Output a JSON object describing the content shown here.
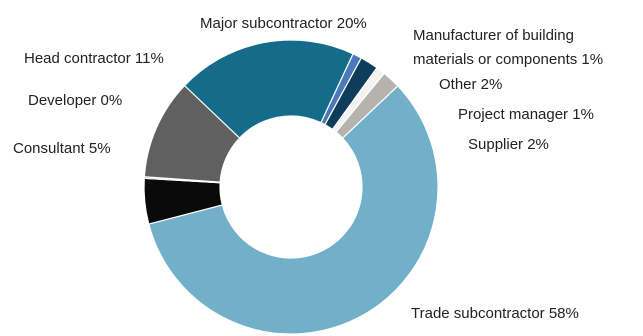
{
  "chart_data": {
    "type": "pie",
    "donut": true,
    "title": "",
    "legend": "none",
    "slices": [
      {
        "name": "Major subcontractor",
        "value": 20,
        "label": "Major subcontractor 20%",
        "color": "#156b8a"
      },
      {
        "name": "Manufacturer of building materials or components",
        "value": 1,
        "label_lines": [
          "Manufacturer of building",
          "materials or components 1%"
        ],
        "color": "#4a78b8"
      },
      {
        "name": "Other",
        "value": 2,
        "label": "Other 2%",
        "color": "#0e3d5c"
      },
      {
        "name": "Project manager",
        "value": 1,
        "label": "Project manager 1%",
        "color": "#f2f2f2"
      },
      {
        "name": "Supplier",
        "value": 2,
        "label": "Supplier 2%",
        "color": "#b5b3ae"
      },
      {
        "name": "Trade subcontractor",
        "value": 58,
        "label": "Trade subcontractor 58%",
        "color": "#72afc9"
      },
      {
        "name": "Consultant",
        "value": 5,
        "label": "Consultant 5%",
        "color": "#0a0a0a"
      },
      {
        "name": "Developer",
        "value": 0,
        "label": "Developer 0%",
        "color": "#3c6fa8"
      },
      {
        "name": "Head contractor",
        "value": 11,
        "label": "Head contractor 11%",
        "color": "#606060"
      }
    ]
  }
}
